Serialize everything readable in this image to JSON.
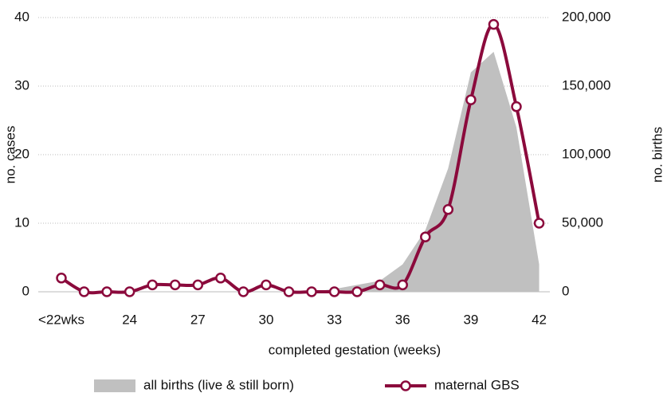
{
  "chart_data": {
    "type": "line",
    "xlabel": "completed gestation (weeks)",
    "ylabel": "no. cases",
    "y2label": "no. births",
    "categories": [
      "<22wks",
      null,
      null,
      "24",
      null,
      null,
      "27",
      null,
      null,
      "30",
      null,
      null,
      "33",
      null,
      null,
      "36",
      null,
      null,
      "39",
      null,
      null,
      "42"
    ],
    "series": [
      {
        "name": "all births (live & still born)",
        "type": "area",
        "axis": "y2",
        "color": "#c0c0c0",
        "values": [
          0,
          0,
          0,
          0,
          0,
          0,
          0,
          0,
          0,
          0,
          0,
          0,
          2000,
          5000,
          8000,
          20000,
          45000,
          90000,
          160000,
          175000,
          120000,
          20000
        ]
      },
      {
        "name": "maternal GBS",
        "type": "line",
        "color": "#8b0a3c",
        "values": [
          2,
          0,
          0,
          0,
          1,
          1,
          1,
          2,
          0,
          1,
          0,
          0,
          0,
          0,
          1,
          1,
          8,
          12,
          28,
          39,
          27,
          10
        ]
      }
    ],
    "ylim": [
      0,
      40
    ],
    "yticks": [
      0,
      10,
      20,
      30,
      40
    ],
    "y2lim": [
      0,
      200000
    ],
    "y2ticks": [
      {
        "value": 0,
        "label": "0"
      },
      {
        "value": 50000,
        "label": "50,000"
      },
      {
        "value": 100000,
        "label": "100,000"
      },
      {
        "value": 150000,
        "label": "150,000"
      },
      {
        "value": 200000,
        "label": "200,000"
      }
    ],
    "grid": true,
    "legend": "bottom"
  }
}
